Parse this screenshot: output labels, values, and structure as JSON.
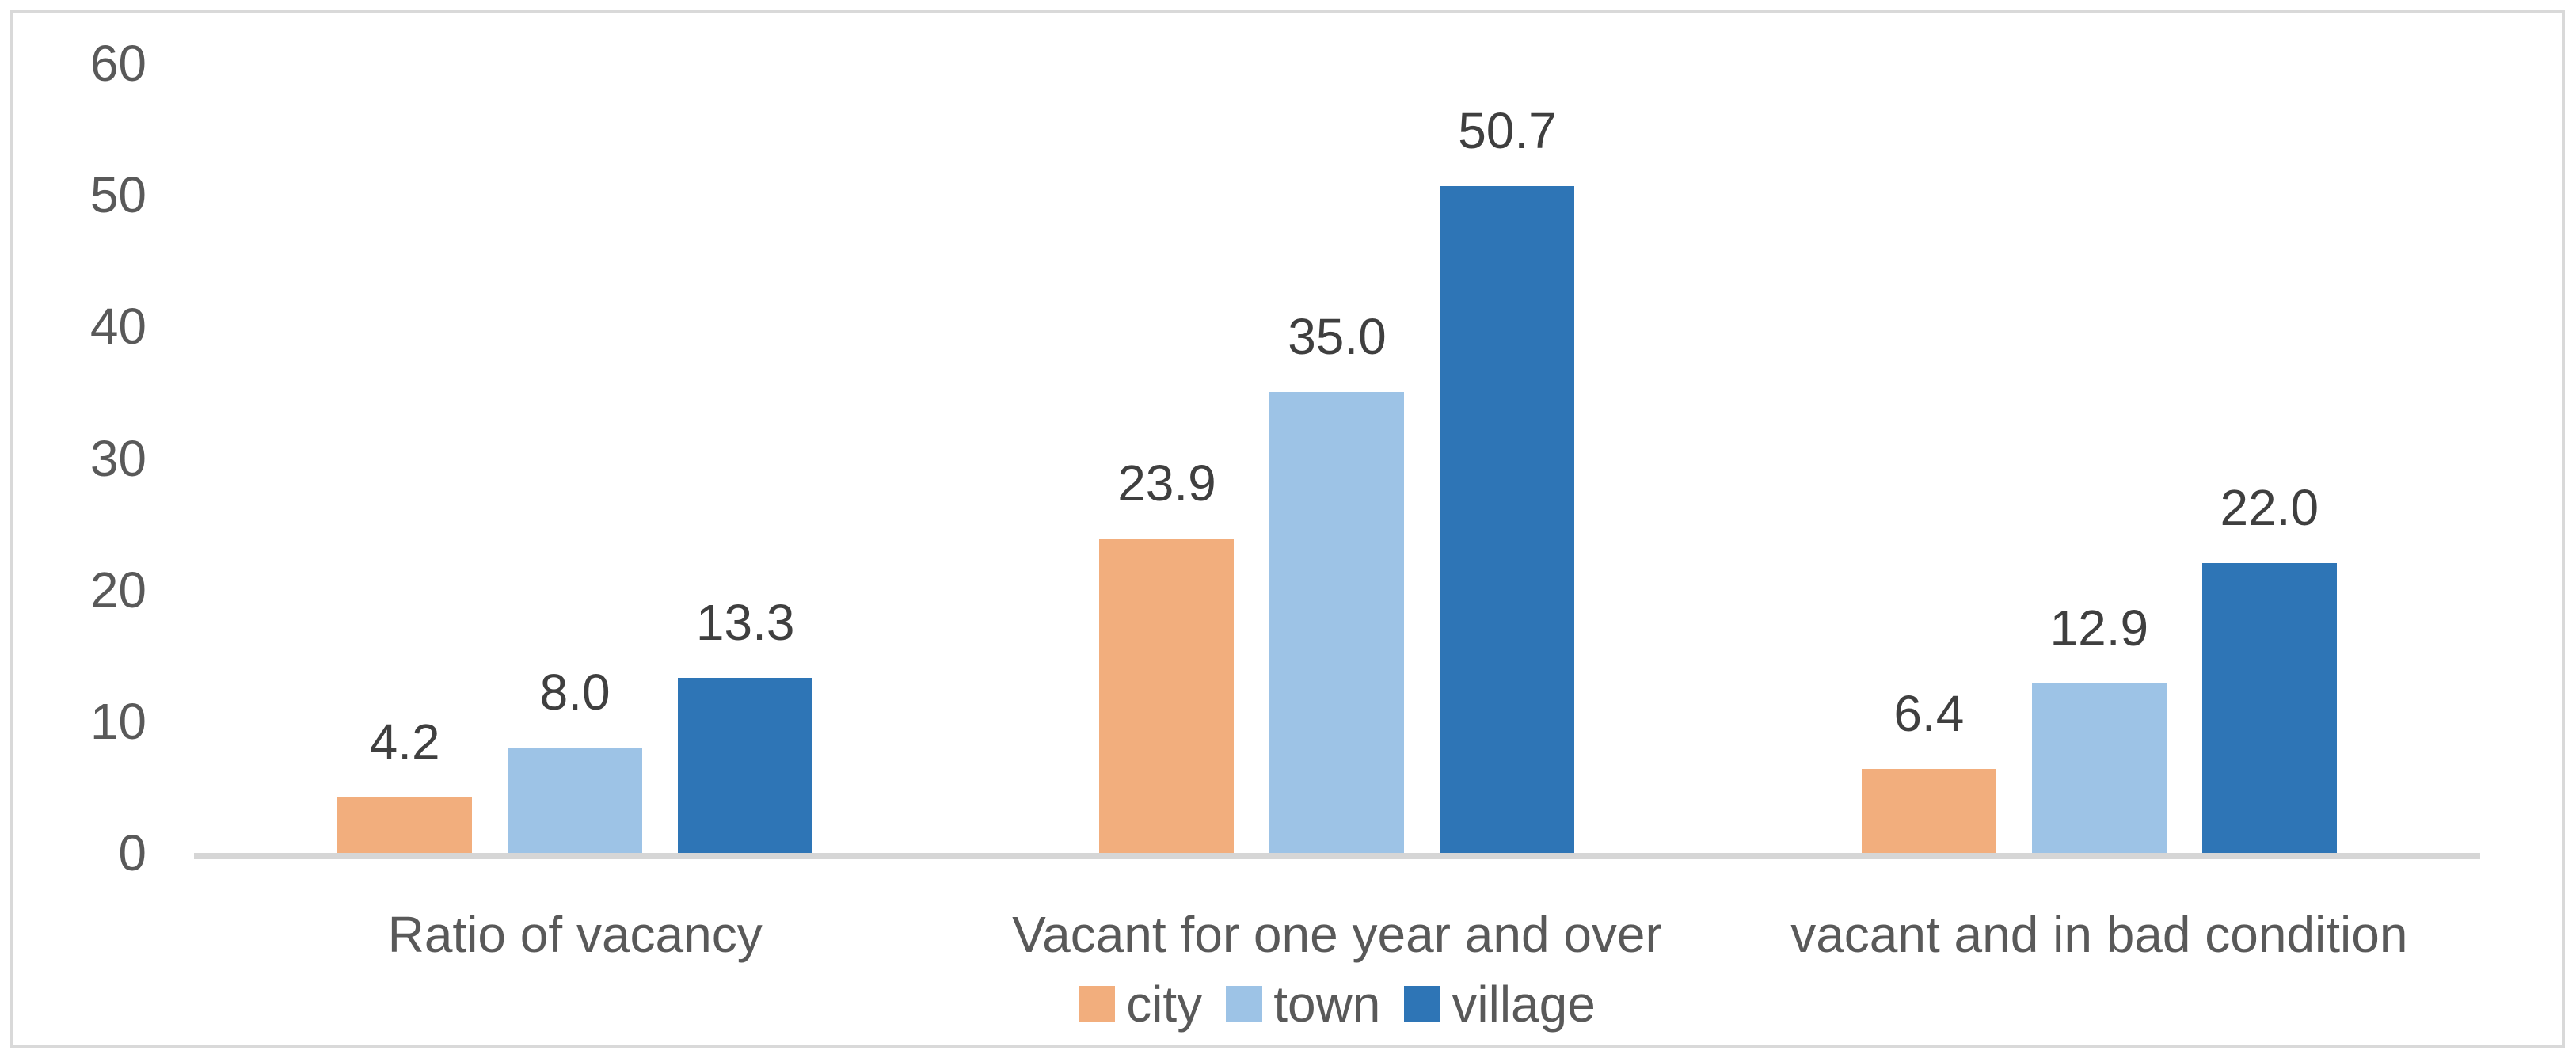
{
  "chart_data": {
    "type": "bar",
    "title": "",
    "xlabel": "",
    "ylabel": "",
    "ylim": [
      0,
      60
    ],
    "grid": false,
    "legend_position": "bottom",
    "categories": [
      "Ratio of vacancy",
      "Vacant for one year and over",
      "vacant and in bad condition"
    ],
    "series": [
      {
        "name": "city",
        "color": "#F2AE7D",
        "values": [
          4.2,
          23.9,
          6.4
        ],
        "labels": [
          "4.2",
          "23.9",
          "6.4"
        ]
      },
      {
        "name": "town",
        "color": "#9DC3E6",
        "values": [
          8.0,
          35.0,
          12.9
        ],
        "labels": [
          "8.0",
          "35.0",
          "12.9"
        ]
      },
      {
        "name": "village",
        "color": "#2E75B6",
        "values": [
          13.3,
          50.7,
          22.0
        ],
        "labels": [
          "13.3",
          "50.7",
          "22.0"
        ]
      }
    ],
    "y_axis": {
      "ticks": [
        {
          "value": 0,
          "label": "0"
        },
        {
          "value": 10,
          "label": "10"
        },
        {
          "value": 20,
          "label": "20"
        },
        {
          "value": 30,
          "label": "30"
        },
        {
          "value": 40,
          "label": "40"
        },
        {
          "value": 50,
          "label": "50"
        },
        {
          "value": 60,
          "label": "60"
        }
      ]
    }
  },
  "colors": {
    "frame_border": "#D9D9D9",
    "axis_line": "#D6D6D6",
    "tick_text": "#595959",
    "value_text": "#3F3F3F"
  }
}
